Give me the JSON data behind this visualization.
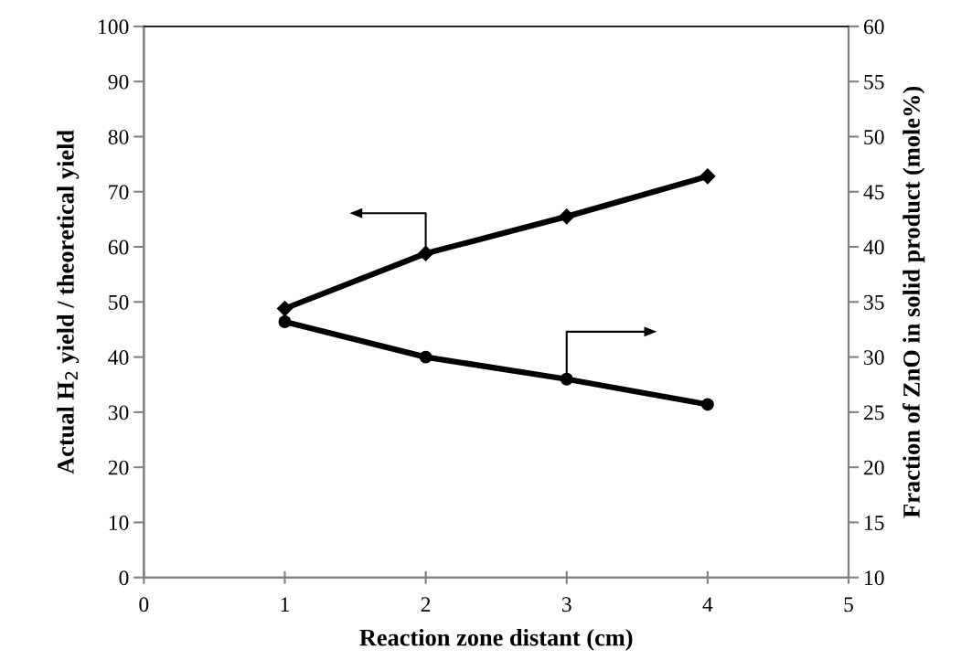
{
  "chart_data": {
    "type": "line",
    "xlabel": "Reaction zone distant (cm)",
    "ylabel": "Actual H$_{2}$ yield / theoretical yield",
    "y2label": "Fraction of ZnO in solid product (mole%)",
    "x": [
      1,
      2,
      3,
      4
    ],
    "series": [
      {
        "color": "#000000",
        "marker": "diamond",
        "values": [
          48.8,
          58.8,
          65.5,
          72.8
        ]
      },
      {
        "color": "#000000",
        "marker": "circle",
        "axis": "y2",
        "values": [
          33.2,
          30.0,
          28.0,
          25.7
        ]
      }
    ],
    "xlim": [
      0,
      5
    ],
    "xticks": [
      0,
      1,
      2,
      3,
      4,
      5
    ],
    "ylim": [
      0,
      100
    ],
    "yticks": [
      0,
      10,
      20,
      30,
      40,
      50,
      60,
      70,
      80,
      90,
      100
    ],
    "y2lim": [
      10,
      60
    ],
    "y2ticks": [
      10,
      15,
      20,
      25,
      30,
      35,
      40,
      45,
      50,
      55,
      60
    ],
    "grid": false,
    "legend": false,
    "line_style": "solid"
  }
}
